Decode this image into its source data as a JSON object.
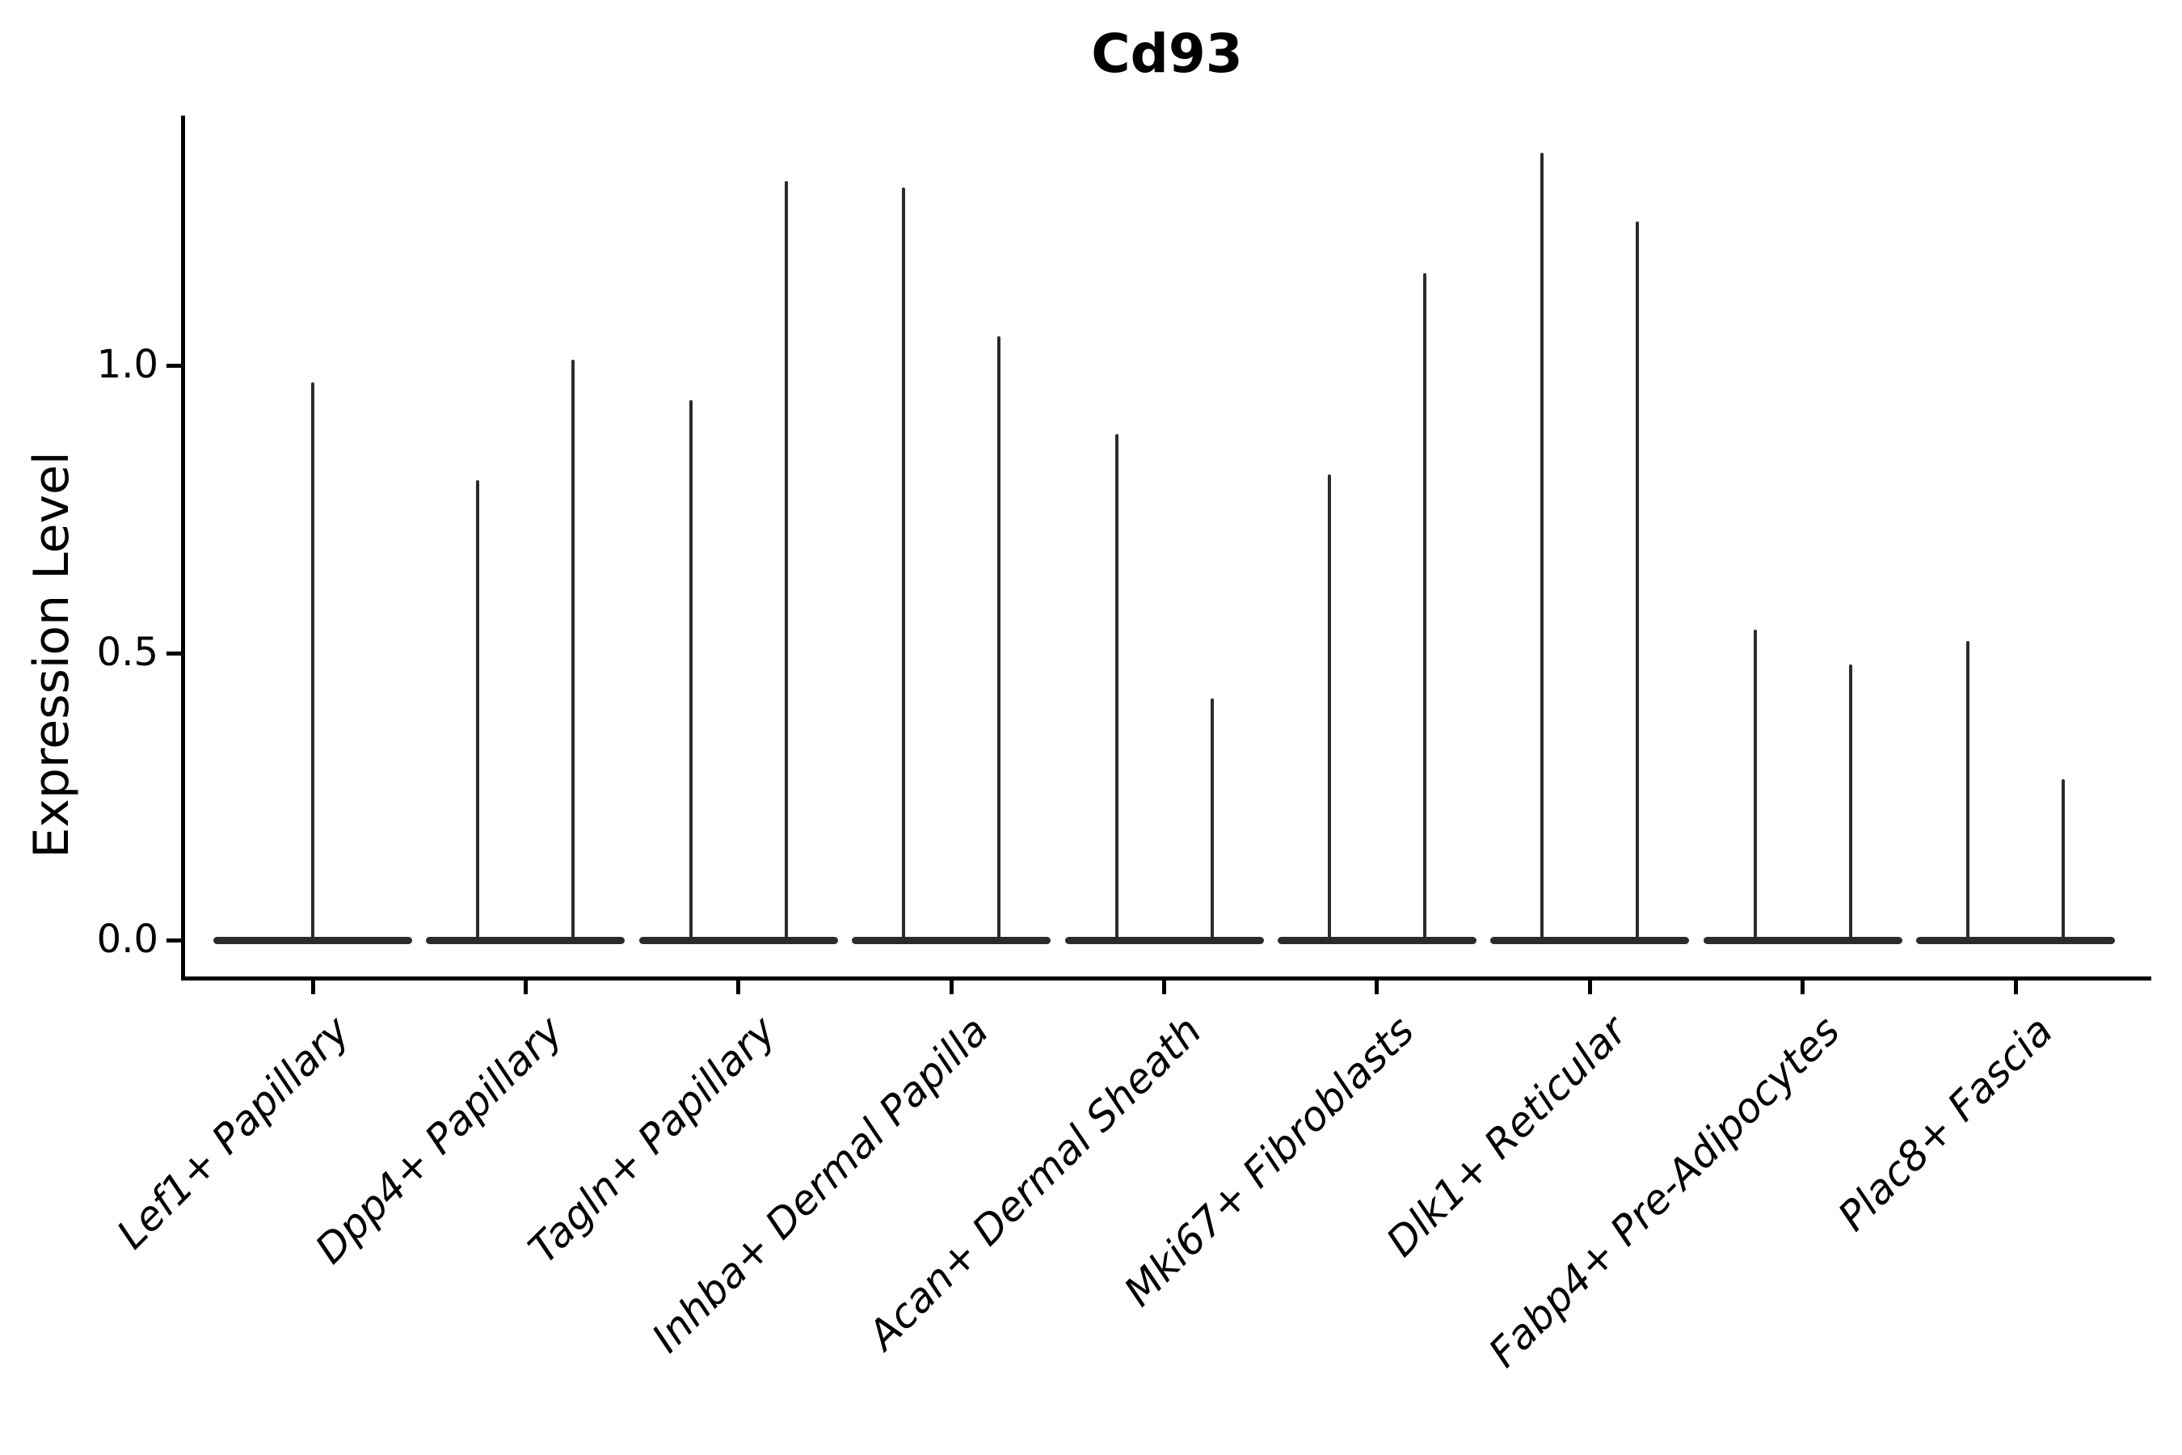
{
  "title": "Cd93",
  "axes": {
    "y_label": "Expression Level",
    "y_tick_labels": [
      "1.0",
      "0.5",
      "0.0"
    ]
  },
  "chart_data": {
    "type": "violin",
    "title": "Cd93",
    "xlabel": "",
    "ylabel": "Expression Level",
    "ylim": [
      0,
      1.44
    ],
    "yticks": [
      1.0,
      0.5,
      0.0
    ],
    "grid": false,
    "legend_position": "none",
    "violin_shape": "mass concentrated at 0 with thin vertical spike rising to the maximum value",
    "categories": [
      "Lef1+ Papillary",
      "Dpp4+ Papillary",
      "Tagln+ Papillary",
      "Inhba+ Dermal Papilla",
      "Acan+ Dermal Sheath",
      "Mki67+ Fibroblasts",
      "Dlk1+ Reticular",
      "Fabp4+ Pre-Adipocytes",
      "Plac8+ Fascia"
    ],
    "violin_maxima": [
      [
        0.97
      ],
      [
        0.8,
        1.01
      ],
      [
        0.94,
        1.32
      ],
      [
        1.31,
        1.05
      ],
      [
        0.88,
        0.42
      ],
      [
        0.81,
        1.16
      ],
      [
        1.37,
        1.25
      ],
      [
        0.54,
        0.48
      ],
      [
        0.52,
        0.28
      ]
    ]
  }
}
